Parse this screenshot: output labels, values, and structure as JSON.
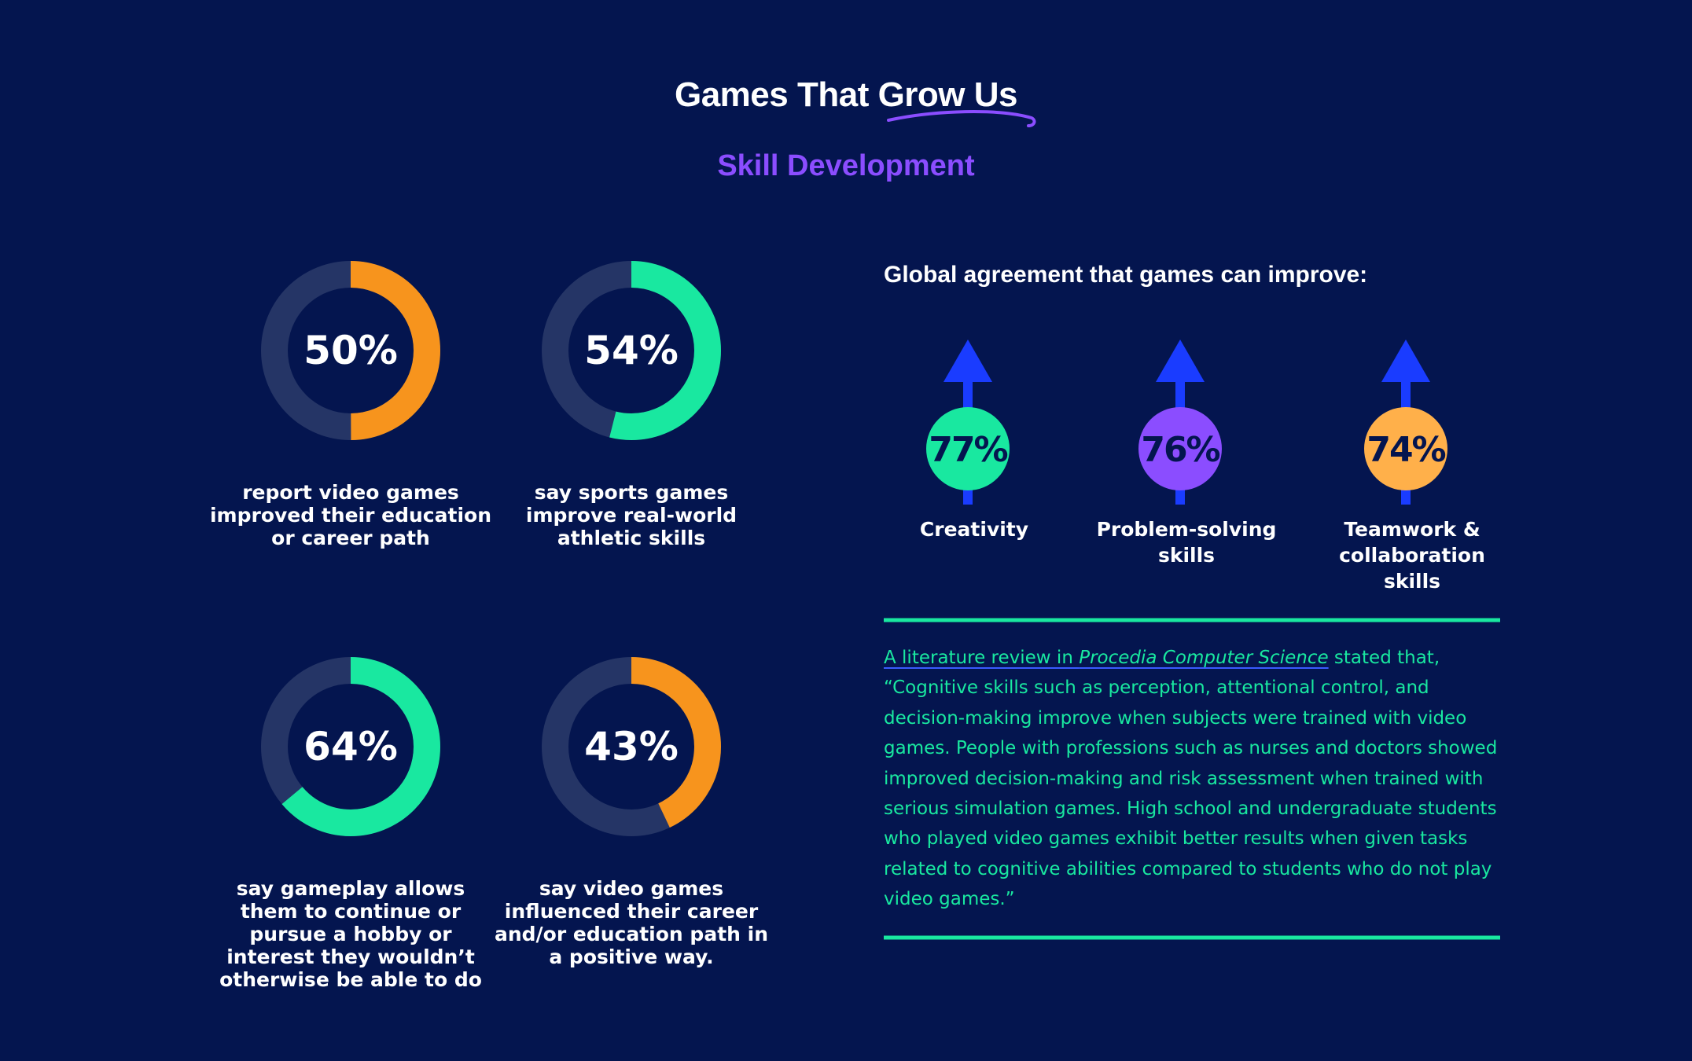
{
  "header": {
    "title": "Games That Grow Us",
    "subtitle": "Skill Development"
  },
  "donuts": [
    {
      "value": 50,
      "value_label": "50%",
      "label": "report video games improved their education or career path",
      "color": "#f7941d"
    },
    {
      "value": 54,
      "value_label": "54%",
      "label": "say sports games improve real-world athletic skills",
      "color": "#19e8a0"
    },
    {
      "value": 64,
      "value_label": "64%",
      "label": "say gameplay allows them to continue or pursue a hobby or interest they wouldn’t otherwise be able to do",
      "color": "#19e8a0"
    },
    {
      "value": 43,
      "value_label": "43%",
      "label": "say video games influenced their career and/or education path in a positive way.",
      "color": "#f7941d"
    }
  ],
  "agreement": {
    "title": "Global agreement that games can improve:",
    "items": [
      {
        "value": 77,
        "value_label": "77%",
        "label": "Creativity",
        "color": "#19e8a0"
      },
      {
        "value": 76,
        "value_label": "76%",
        "label": "Problem-solving skills",
        "color": "#8b4dff"
      },
      {
        "value": 74,
        "value_label": "74%",
        "label": "Teamwork & collaboration skills",
        "color": "#ffb04a"
      }
    ]
  },
  "quote": {
    "link_start": "A literature review in ",
    "link_source": "Procedia Computer Science",
    "lead": " stated that,",
    "text": "“Cognitive skills such as perception, attentional control, and decision-making improve when subjects were trained with video games. People with professions such as nurses and doctors showed improved decision-making and risk assessment when trained with serious simulation games. High school and undergraduate students who played video games exhibit better results when given tasks related to cognitive abilities compared to students who do not play video games.”"
  }
}
